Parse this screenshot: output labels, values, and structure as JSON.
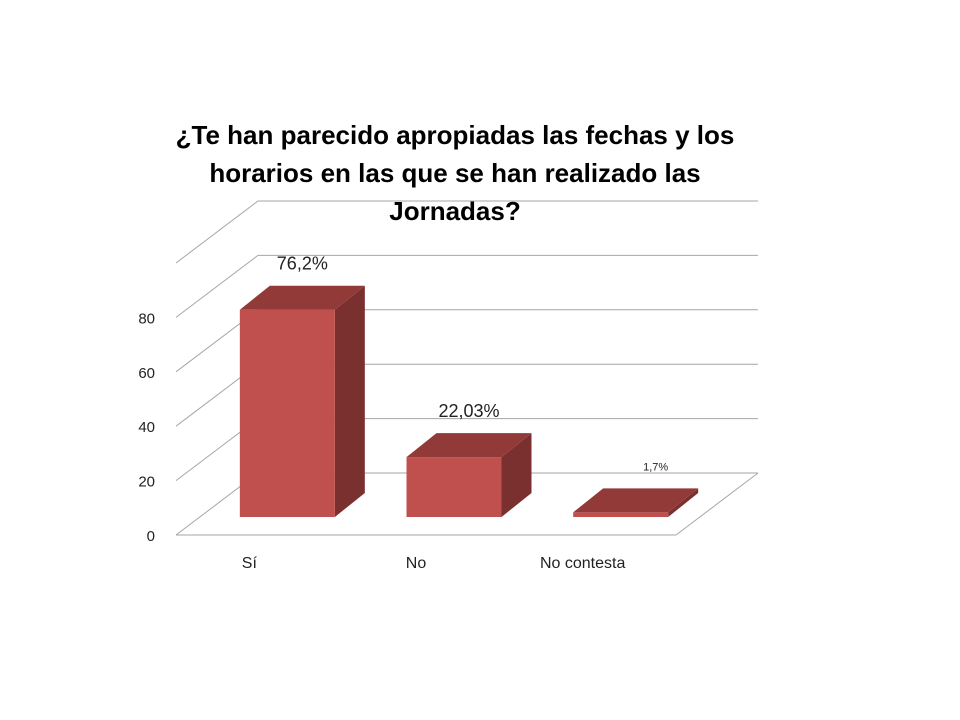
{
  "chart_data": {
    "type": "bar",
    "style": "3d-column",
    "title": "¿Te han parecido apropiadas las fechas y los horarios en las que se han realizado las Jornadas?",
    "categories": [
      "Sí",
      "No",
      "No contesta"
    ],
    "values": [
      76.2,
      22.03,
      1.7
    ],
    "data_labels": [
      "76,2%",
      "22,03%",
      "1,7%"
    ],
    "yticks": [
      "0",
      "20",
      "40",
      "60",
      "80"
    ],
    "ylim": [
      0,
      100
    ],
    "grid": true,
    "legend": "none",
    "colors": {
      "bar_front": "#C0504D",
      "bar_top": "#923A38",
      "bar_side": "#7A302F",
      "grid": "#A6A6A6"
    }
  }
}
